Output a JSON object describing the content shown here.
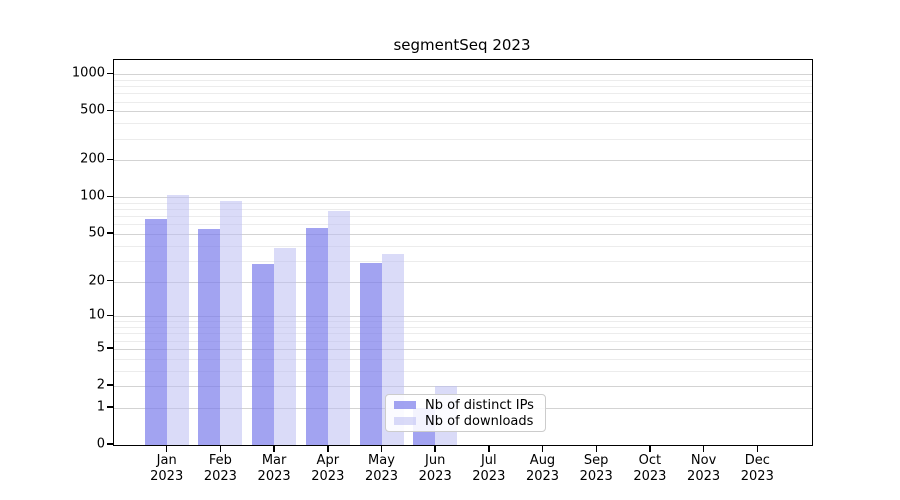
{
  "title": "segmentSeq 2023",
  "chart_data": {
    "type": "bar",
    "title": "segmentSeq 2023",
    "categories": [
      "Jan",
      "Feb",
      "Mar",
      "Apr",
      "May",
      "Jun",
      "Jul",
      "Aug",
      "Sep",
      "Oct",
      "Nov",
      "Dec"
    ],
    "x_tick_sublabel": "2023",
    "series": [
      {
        "name": "Nb of distinct IPs",
        "color": "rgba(122,124,235,0.70)",
        "values": [
          67,
          55,
          28,
          56,
          29,
          1,
          0,
          0,
          0,
          0,
          0,
          0
        ]
      },
      {
        "name": "Nb of downloads",
        "color": "rgba(188,190,243,0.55)",
        "values": [
          104,
          94,
          38,
          78,
          34,
          2,
          0,
          0,
          0,
          0,
          0,
          0
        ]
      }
    ],
    "y_axis": {
      "scale": "log1p",
      "ticks": [
        0,
        1,
        2,
        5,
        10,
        20,
        50,
        100,
        200,
        500,
        1000
      ],
      "minor_gridlines": [
        3,
        4,
        6,
        7,
        8,
        9,
        30,
        40,
        60,
        70,
        80,
        90,
        300,
        400,
        600,
        700,
        800,
        900
      ],
      "ymax_top_of_box": 1300
    },
    "xlabel": "",
    "ylabel": "",
    "grid": true,
    "legend": {
      "position": "lower-right-inside",
      "entries": [
        "Nb of distinct IPs",
        "Nb of downloads"
      ]
    },
    "colors": {
      "bar_distinct_ips_on_white": "#a5a6f0",
      "bar_downloads_on_white": "#dadbf8",
      "gridline_major": "#d3d3d3",
      "gridline_minor": "#ececec",
      "axis": "#000000"
    }
  }
}
